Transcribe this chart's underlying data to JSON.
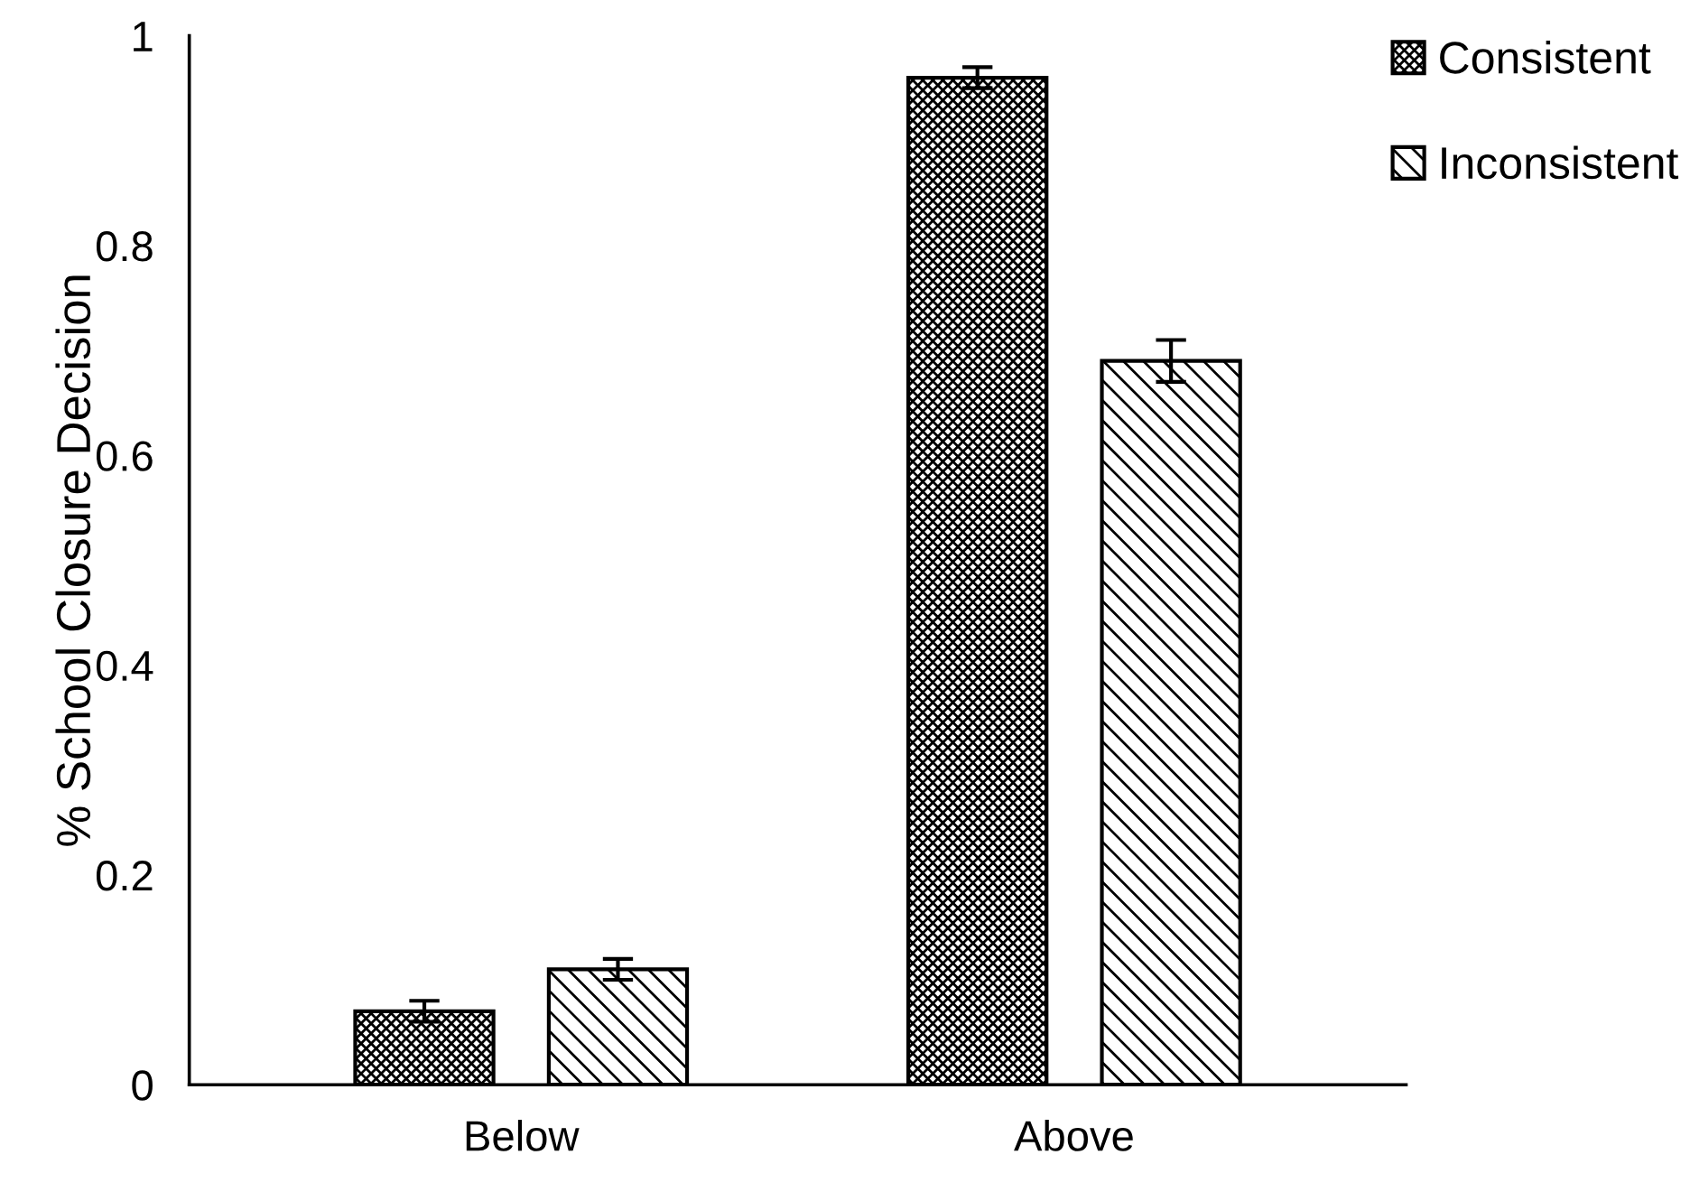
{
  "chart_data": {
    "type": "bar",
    "ylabel": "% School Closure Decision",
    "categories": [
      "Below",
      "Above"
    ],
    "series": [
      {
        "name": "Consistent",
        "color": "#000000",
        "values": [
          0.07,
          0.96
        ],
        "errors": [
          0.01,
          0.01
        ]
      },
      {
        "name": "Inconsistent",
        "color": "#000000",
        "values": [
          0.11,
          0.69
        ],
        "errors": [
          0.01,
          0.02
        ]
      }
    ],
    "ylim": [
      0,
      1
    ],
    "yticks": [
      0,
      0.2,
      0.4,
      0.6,
      0.8,
      1
    ],
    "grid": false,
    "legend": "top right"
  }
}
